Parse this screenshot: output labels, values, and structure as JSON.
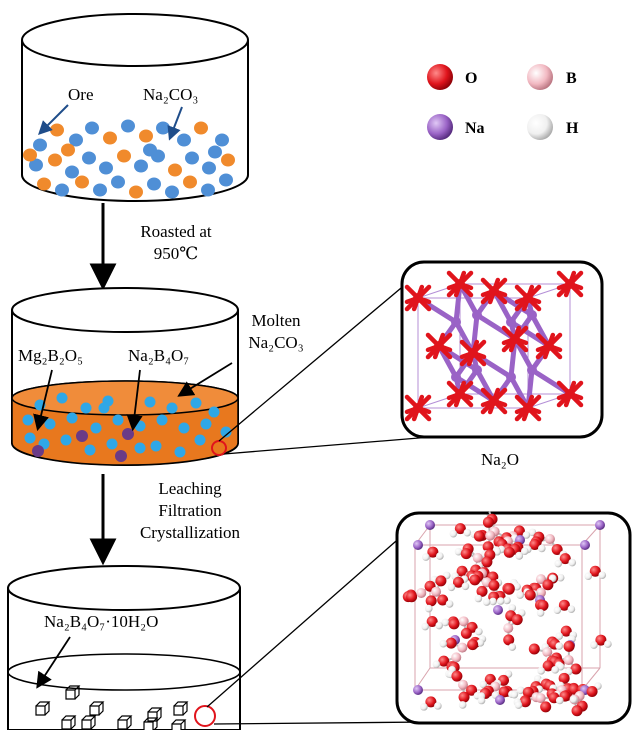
{
  "vessel1": {
    "label_ore": "Ore",
    "label_na2co3": "Na₂CO₃"
  },
  "step1": {
    "line1": "Roasted at",
    "line2": "950℃"
  },
  "vessel2": {
    "label_molten_line1": "Molten",
    "label_molten_line2": "Na₂CO₃",
    "label_mg2b2o5": "Mg₂B₂O₅",
    "label_na2b4o7": "Na₂B₄O₇"
  },
  "inset1": {
    "caption": "Na₂O"
  },
  "step2": {
    "line1": "Leaching",
    "line2": "Filtration",
    "line3": "Crystallization"
  },
  "vessel3": {
    "label_product": "Na₂B₄O₇·10H₂O"
  },
  "legend": {
    "items": [
      {
        "symbol": "O",
        "color": "#e0141c"
      },
      {
        "symbol": "B",
        "color": "#f2b9c2"
      },
      {
        "symbol": "Na",
        "color": "#9a63c6"
      },
      {
        "symbol": "H",
        "color": "#f2f2f2"
      }
    ]
  },
  "colors": {
    "ore_particle": "#4f8fd6",
    "carbonate_particle": "#f08a2c",
    "melt": "#e8781e",
    "melt_particle": "#2fa7e6",
    "borate_particle": "#6a3b87",
    "oxygen": "#e0141c",
    "sodium": "#9a63c6"
  }
}
